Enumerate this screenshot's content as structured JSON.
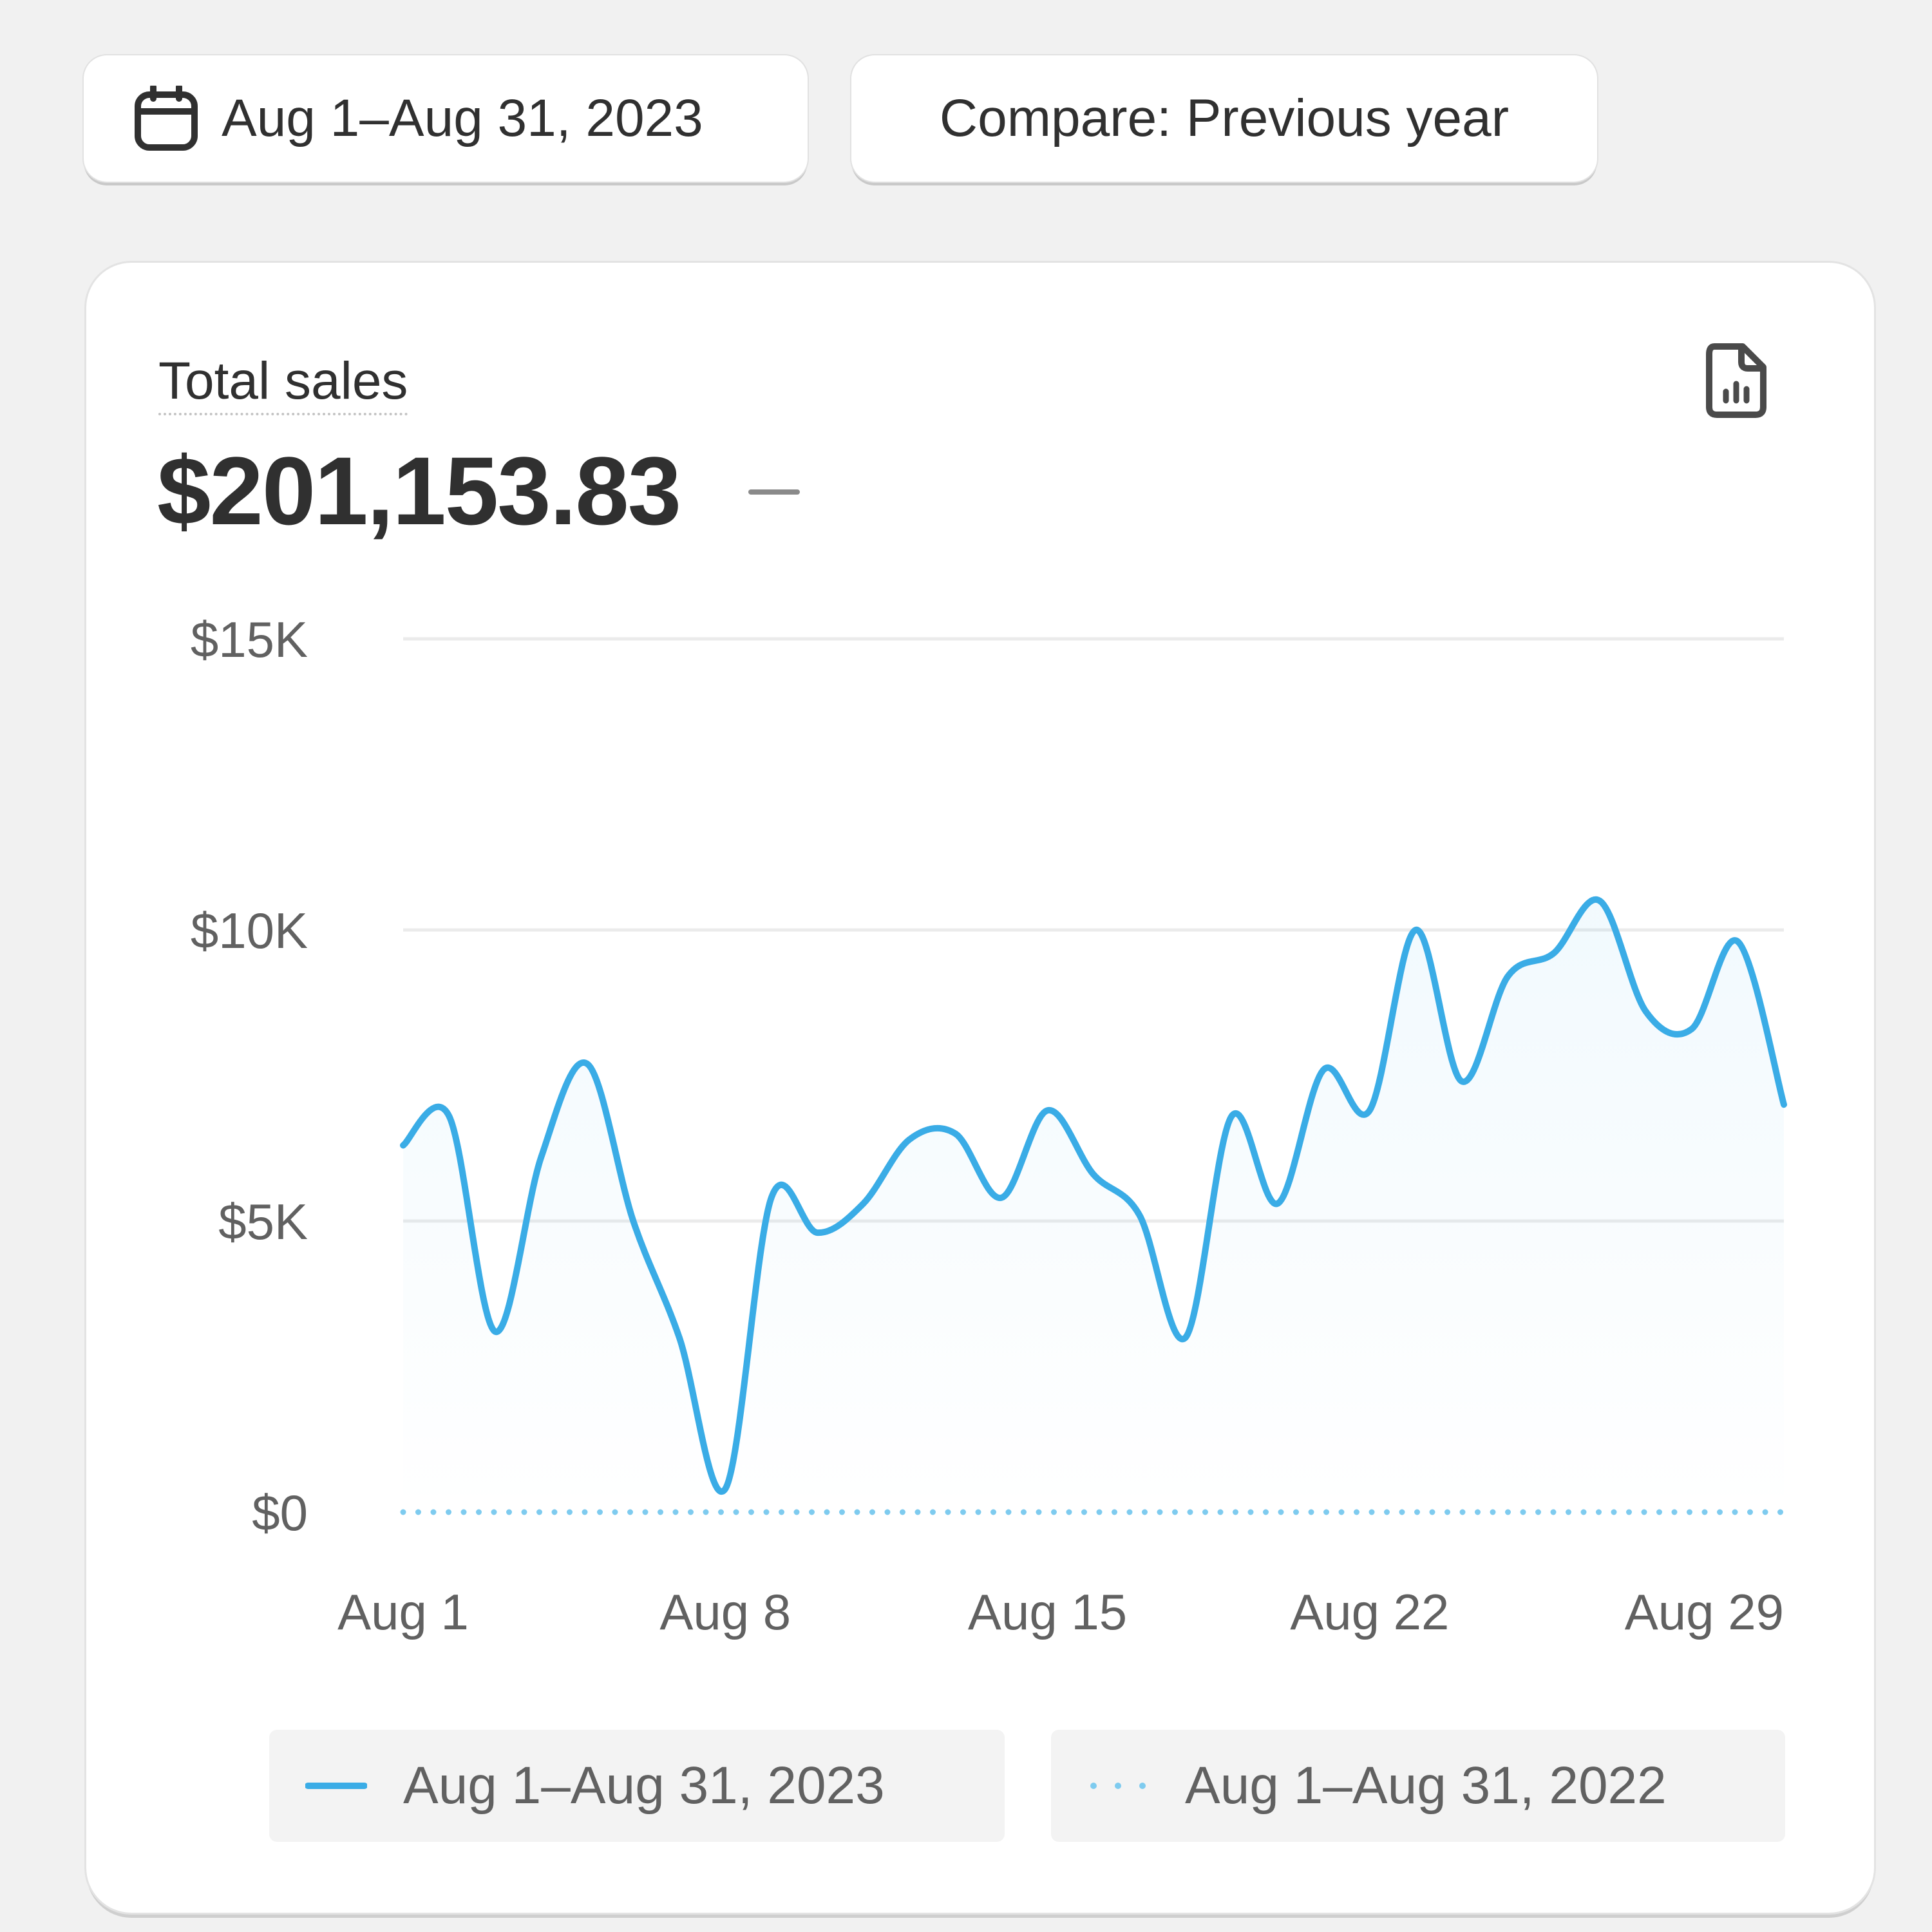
{
  "toolbar": {
    "date_range_label": "Aug 1–Aug 31, 2023",
    "compare_label": "Compare: Previous year",
    "date_icon": "calendar-icon"
  },
  "card": {
    "title": "Total sales",
    "total": "$201,153.83",
    "change": "–",
    "export_icon": "report-export-icon"
  },
  "colors": {
    "primary_series": "#3aace6",
    "comparison_series": "#7ecbef",
    "grid": "#ebebeb",
    "text_muted": "#616161"
  },
  "chart_data": {
    "type": "line",
    "title": "Total sales",
    "xlabel": "",
    "ylabel": "",
    "x": [
      "Aug 1",
      "Aug 2",
      "Aug 3",
      "Aug 4",
      "Aug 5",
      "Aug 6",
      "Aug 7",
      "Aug 8",
      "Aug 9",
      "Aug 10",
      "Aug 11",
      "Aug 12",
      "Aug 13",
      "Aug 14",
      "Aug 15",
      "Aug 16",
      "Aug 17",
      "Aug 18",
      "Aug 19",
      "Aug 20",
      "Aug 21",
      "Aug 22",
      "Aug 23",
      "Aug 24",
      "Aug 25",
      "Aug 26",
      "Aug 27",
      "Aug 28",
      "Aug 29",
      "Aug 30",
      "Aug 31"
    ],
    "x_ticks": [
      "Aug 1",
      "Aug 8",
      "Aug 15",
      "Aug 22",
      "Aug 29"
    ],
    "y_ticks": [
      "$0",
      "$5K",
      "$10K",
      "$15K"
    ],
    "ylim": [
      0,
      15000
    ],
    "grid": true,
    "legend": "bottom",
    "series": [
      {
        "name": "Aug 1–Aug 31, 2023",
        "style": "solid",
        "values": [
          6300,
          6800,
          3100,
          6100,
          7700,
          5000,
          3000,
          400,
          5400,
          4800,
          5300,
          6400,
          6500,
          5400,
          6900,
          5800,
          5100,
          3000,
          6800,
          5300,
          7600,
          6900,
          10000,
          7400,
          9200,
          9600,
          10500,
          8600,
          8300,
          9800,
          7000
        ]
      },
      {
        "name": "Aug 1–Aug 31, 2022",
        "style": "dotted",
        "values": [
          0,
          0,
          0,
          0,
          0,
          0,
          0,
          0,
          0,
          0,
          0,
          0,
          0,
          0,
          0,
          0,
          0,
          0,
          0,
          0,
          0,
          0,
          0,
          0,
          0,
          0,
          0,
          0,
          0,
          0,
          0
        ]
      }
    ]
  }
}
